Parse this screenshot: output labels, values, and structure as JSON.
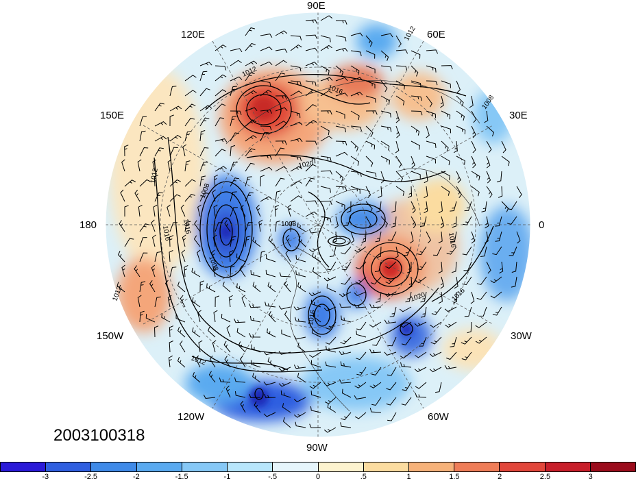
{
  "title_date": "2003100318",
  "lon_labels": {
    "lon_90e": "90E",
    "lon_120e": "120E",
    "lon_60e": "60E",
    "lon_150e": "150E",
    "lon_30e": "30E",
    "lon_180": "180",
    "lon_0": "0",
    "lon_150w": "150W",
    "lon_30w": "30W",
    "lon_120w": "120W",
    "lon_60w": "60W",
    "lon_90w": "90W"
  },
  "contour_labels": [
    "1012",
    "1016",
    "1020",
    "1008",
    "1012",
    "1016",
    "1016",
    "1008",
    "1008",
    "1016",
    "1012",
    "1020",
    "1016",
    "1016",
    "1012",
    "1012",
    "1008"
  ],
  "colorbar": {
    "colors": [
      "#2a1ad8",
      "#2f5fe0",
      "#3f8ae8",
      "#5aaaf0",
      "#86c8f6",
      "#b8e6fb",
      "#e6f5fb",
      "#fdf3cf",
      "#fbdca0",
      "#f6b27a",
      "#ef7d58",
      "#e2463b",
      "#c81e2a",
      "#9b0c1c"
    ],
    "tick_labels": [
      "-3",
      "-2.5",
      "-2",
      "-1.5",
      "-1",
      "-.5",
      "0",
      ".5",
      "1",
      "1.5",
      "2",
      "2.5",
      "3"
    ]
  },
  "colors": {
    "base": "#e8f4f8",
    "warm": "#f4a67a",
    "hot": "#d93a2e",
    "cool": "#7fb6ee",
    "cold": "#2f5fe0",
    "pale_warm": "#fbe3b8"
  }
}
